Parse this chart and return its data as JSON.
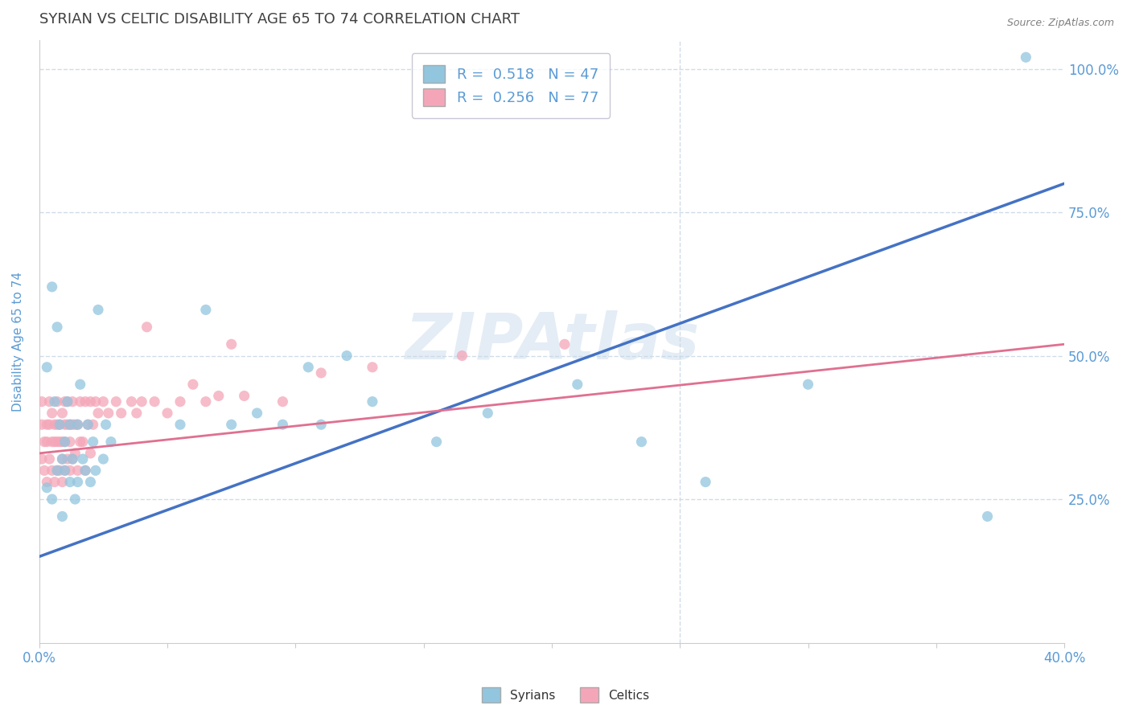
{
  "title": "SYRIAN VS CELTIC DISABILITY AGE 65 TO 74 CORRELATION CHART",
  "source_text": "Source: ZipAtlas.com",
  "ylabel": "Disability Age 65 to 74",
  "xlim": [
    0.0,
    0.4
  ],
  "ylim": [
    0.0,
    1.05
  ],
  "xtick_values": [
    0.0,
    0.05,
    0.1,
    0.15,
    0.2,
    0.25,
    0.3,
    0.35,
    0.4
  ],
  "xtick_labels_show": [
    "0.0%",
    "",
    "",
    "",
    "",
    "",
    "",
    "",
    "40.0%"
  ],
  "ytick_labels": [
    "25.0%",
    "50.0%",
    "75.0%",
    "100.0%"
  ],
  "ytick_values": [
    0.25,
    0.5,
    0.75,
    1.0
  ],
  "syrian_color": "#92c5de",
  "celtic_color": "#f4a6b8",
  "syrian_R": 0.518,
  "syrian_N": 47,
  "celtic_R": 0.256,
  "celtic_N": 77,
  "watermark": "ZIPAtlas",
  "title_color": "#404040",
  "axis_label_color": "#5b9bd5",
  "tick_color": "#5b9bd5",
  "grid_color": "#d0dce8",
  "syrian_line_color": "#4472c4",
  "celtic_line_color": "#e07090",
  "syr_line_x": [
    0.0,
    0.4
  ],
  "syr_line_y": [
    0.15,
    0.8
  ],
  "celt_line_x": [
    0.0,
    0.4
  ],
  "celt_line_y": [
    0.33,
    0.52
  ],
  "syrian_scatter_x": [
    0.003,
    0.003,
    0.005,
    0.005,
    0.006,
    0.007,
    0.007,
    0.008,
    0.009,
    0.009,
    0.01,
    0.01,
    0.011,
    0.012,
    0.012,
    0.013,
    0.014,
    0.015,
    0.015,
    0.016,
    0.017,
    0.018,
    0.019,
    0.02,
    0.021,
    0.022,
    0.023,
    0.025,
    0.026,
    0.028,
    0.055,
    0.065,
    0.075,
    0.085,
    0.095,
    0.105,
    0.11,
    0.12,
    0.13,
    0.155,
    0.175,
    0.21,
    0.235,
    0.26,
    0.3,
    0.37,
    0.385
  ],
  "syrian_scatter_y": [
    0.27,
    0.48,
    0.25,
    0.62,
    0.42,
    0.3,
    0.55,
    0.38,
    0.22,
    0.32,
    0.35,
    0.3,
    0.42,
    0.28,
    0.38,
    0.32,
    0.25,
    0.38,
    0.28,
    0.45,
    0.32,
    0.3,
    0.38,
    0.28,
    0.35,
    0.3,
    0.58,
    0.32,
    0.38,
    0.35,
    0.38,
    0.58,
    0.38,
    0.4,
    0.38,
    0.48,
    0.38,
    0.5,
    0.42,
    0.35,
    0.4,
    0.45,
    0.35,
    0.28,
    0.45,
    0.22,
    1.02
  ],
  "celtic_scatter_x": [
    0.001,
    0.001,
    0.001,
    0.002,
    0.002,
    0.003,
    0.003,
    0.003,
    0.004,
    0.004,
    0.004,
    0.005,
    0.005,
    0.005,
    0.006,
    0.006,
    0.006,
    0.007,
    0.007,
    0.007,
    0.007,
    0.008,
    0.008,
    0.008,
    0.009,
    0.009,
    0.009,
    0.009,
    0.01,
    0.01,
    0.01,
    0.01,
    0.011,
    0.011,
    0.011,
    0.012,
    0.012,
    0.012,
    0.013,
    0.013,
    0.013,
    0.014,
    0.014,
    0.015,
    0.015,
    0.016,
    0.016,
    0.017,
    0.018,
    0.018,
    0.019,
    0.02,
    0.02,
    0.021,
    0.022,
    0.023,
    0.025,
    0.027,
    0.03,
    0.032,
    0.036,
    0.038,
    0.04,
    0.042,
    0.045,
    0.05,
    0.055,
    0.06,
    0.065,
    0.07,
    0.075,
    0.08,
    0.095,
    0.11,
    0.13,
    0.165,
    0.205
  ],
  "celtic_scatter_y": [
    0.32,
    0.38,
    0.42,
    0.3,
    0.35,
    0.28,
    0.35,
    0.38,
    0.32,
    0.38,
    0.42,
    0.3,
    0.35,
    0.4,
    0.28,
    0.35,
    0.38,
    0.3,
    0.35,
    0.38,
    0.42,
    0.3,
    0.35,
    0.38,
    0.28,
    0.32,
    0.35,
    0.4,
    0.3,
    0.35,
    0.38,
    0.42,
    0.32,
    0.38,
    0.42,
    0.3,
    0.35,
    0.38,
    0.32,
    0.38,
    0.42,
    0.33,
    0.38,
    0.3,
    0.38,
    0.35,
    0.42,
    0.35,
    0.3,
    0.42,
    0.38,
    0.33,
    0.42,
    0.38,
    0.42,
    0.4,
    0.42,
    0.4,
    0.42,
    0.4,
    0.42,
    0.4,
    0.42,
    0.55,
    0.42,
    0.4,
    0.42,
    0.45,
    0.42,
    0.43,
    0.52,
    0.43,
    0.42,
    0.47,
    0.48,
    0.5,
    0.52
  ]
}
